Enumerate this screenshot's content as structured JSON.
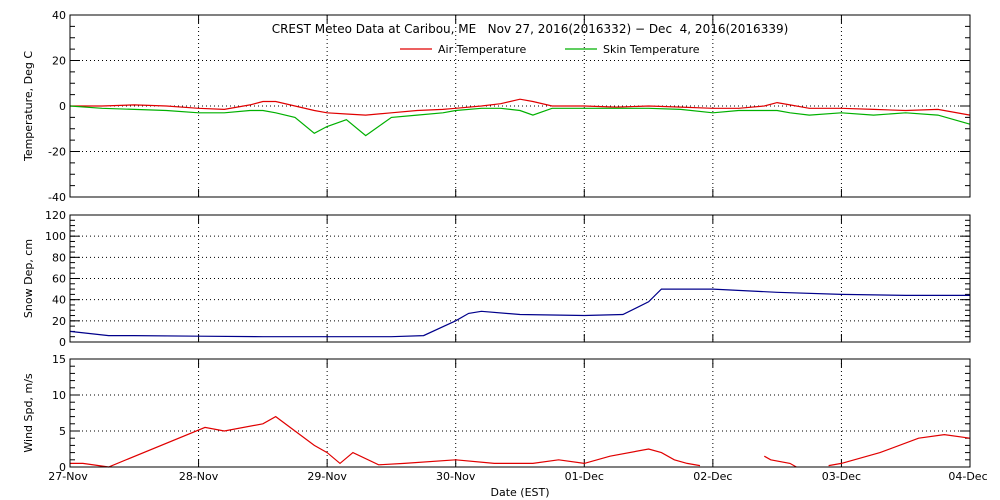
{
  "chart_data": [
    {
      "type": "line",
      "title": "CREST Meteo Data at Caribou, ME   Nov 27, 2016(2016332) − Dec  4, 2016(2016339)",
      "xlabel": "Date (EST)",
      "ylabel": "Temperature, Deg C",
      "ylim": [
        -40,
        40
      ],
      "yticks": [
        -40,
        -20,
        0,
        20,
        40
      ],
      "xticks": [
        "27-Nov",
        "28-Nov",
        "29-Nov",
        "30-Nov",
        "01-Dec",
        "02-Dec",
        "03-Dec",
        "04-Dec"
      ],
      "grid": true,
      "legend": "top-center",
      "x": [
        27.0,
        27.25,
        27.5,
        27.75,
        28.0,
        28.2,
        28.4,
        28.5,
        28.6,
        28.75,
        28.9,
        29.0,
        29.15,
        29.3,
        29.5,
        29.7,
        29.9,
        30.0,
        30.2,
        30.35,
        30.5,
        30.6,
        30.75,
        31.0,
        31.25,
        31.5,
        31.75,
        32.0,
        32.2,
        32.4,
        32.5,
        32.6,
        32.75,
        33.0,
        33.25,
        33.5,
        33.75,
        34.0
      ],
      "series": [
        {
          "name": "Air Temperature",
          "color": "#e00000",
          "values": [
            0,
            0,
            0.5,
            0,
            -1,
            -1.5,
            0.5,
            2,
            2,
            0,
            -2,
            -3,
            -3.5,
            -4,
            -3,
            -2,
            -1.5,
            -1,
            0,
            1,
            3,
            2,
            0,
            0,
            -0.5,
            0,
            -0.5,
            -1,
            -1,
            0,
            1.5,
            0.5,
            -1,
            -1,
            -1.5,
            -2,
            -1.5,
            -4
          ]
        },
        {
          "name": "Skin Temperature",
          "color": "#00b000",
          "values": [
            0,
            -1,
            -1.5,
            -2,
            -3,
            -3,
            -2,
            -2,
            -3,
            -5,
            -12,
            -9,
            -6,
            -13,
            -5,
            -4,
            -3,
            -2,
            -1,
            -1,
            -2,
            -4,
            -1,
            -1,
            -1,
            -1,
            -1.5,
            -3,
            -2,
            -2,
            -2,
            -3,
            -4,
            -3,
            -4,
            -3,
            -4,
            -8
          ]
        }
      ]
    },
    {
      "type": "line",
      "ylabel": "Snow Dep, cm",
      "ylim": [
        0,
        120
      ],
      "yticks": [
        0,
        20,
        40,
        60,
        80,
        100,
        120
      ],
      "grid": true,
      "x": [
        27.0,
        27.3,
        27.5,
        28.0,
        28.5,
        29.0,
        29.5,
        29.75,
        30.0,
        30.1,
        30.2,
        30.5,
        31.0,
        31.3,
        31.5,
        31.6,
        32.0,
        32.5,
        33.0,
        33.5,
        34.0
      ],
      "series": [
        {
          "name": "Snow Depth",
          "color": "#00008b",
          "values": [
            10,
            6,
            6,
            5.5,
            5,
            5,
            5,
            6,
            20,
            27,
            29,
            26,
            25,
            26,
            38,
            50,
            50,
            47,
            45,
            44,
            44
          ]
        }
      ]
    },
    {
      "type": "line",
      "ylabel": "Wind Spd, m/s",
      "ylim": [
        0,
        15
      ],
      "yticks": [
        0,
        5,
        10,
        15
      ],
      "grid": true,
      "x": [
        27.0,
        27.1,
        27.3,
        28.05,
        28.2,
        28.5,
        28.6,
        28.75,
        28.9,
        29.0,
        29.1,
        29.2,
        29.4,
        29.6,
        30.0,
        30.3,
        30.6,
        30.8,
        31.0,
        31.2,
        31.5,
        31.6,
        31.7,
        31.8,
        31.9,
        null,
        32.4,
        32.45,
        32.6,
        32.65,
        null,
        32.9,
        33.0,
        33.3,
        33.6,
        33.8,
        34.0
      ],
      "series": [
        {
          "name": "Wind Speed",
          "color": "#e00000",
          "values": [
            0.5,
            0.5,
            0,
            5.5,
            5,
            6,
            7,
            5,
            3,
            2,
            0.5,
            2,
            0.3,
            0.5,
            1,
            0.5,
            0.5,
            1,
            0.5,
            1.5,
            2.5,
            2,
            1,
            0.5,
            0.2,
            null,
            1.5,
            1,
            0.5,
            0,
            null,
            0.2,
            0.5,
            2,
            4,
            4.5,
            4
          ]
        }
      ]
    }
  ]
}
